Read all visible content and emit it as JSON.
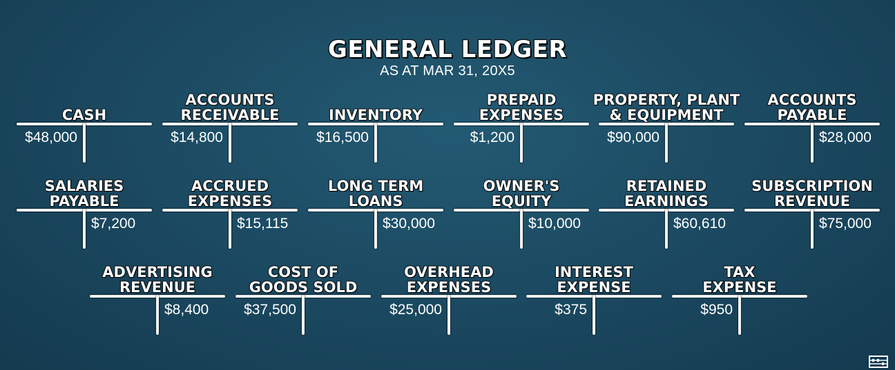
{
  "title": "GENERAL LEDGER",
  "subtitle": "AS AT MAR 31, 20X5",
  "accounts": [
    {
      "name": "CASH",
      "debit": "$48,000",
      "credit": ""
    },
    {
      "name": "ACCOUNTS\nRECEIVABLE",
      "debit": "$14,800",
      "credit": ""
    },
    {
      "name": "INVENTORY",
      "debit": "$16,500",
      "credit": ""
    },
    {
      "name": "PREPAID\nEXPENSES",
      "debit": "$1,200",
      "credit": ""
    },
    {
      "name": "PROPERTY, PLANT\n& EQUIPMENT",
      "debit": "$90,000",
      "credit": ""
    },
    {
      "name": "ACCOUNTS\nPAYABLE",
      "debit": "",
      "credit": "$28,000"
    },
    {
      "name": "SALARIES\nPAYABLE",
      "debit": "",
      "credit": "$7,200"
    },
    {
      "name": "ACCRUED\nEXPENSES",
      "debit": "",
      "credit": "$15,115"
    },
    {
      "name": "LONG TERM\nLOANS",
      "debit": "",
      "credit": "$30,000"
    },
    {
      "name": "OWNER'S\nEQUITY",
      "debit": "",
      "credit": "$10,000"
    },
    {
      "name": "RETAINED\nEARNINGS",
      "debit": "",
      "credit": "$60,610"
    },
    {
      "name": "SUBSCRIPTION\nREVENUE",
      "debit": "",
      "credit": "$75,000"
    },
    {
      "name": "ADVERTISING\nREVENUE",
      "debit": "",
      "credit": "$8,400"
    },
    {
      "name": "COST OF\nGOODS SOLD",
      "debit": "$37,500",
      "credit": ""
    },
    {
      "name": "OVERHEAD\nEXPENSES",
      "debit": "$25,000",
      "credit": ""
    },
    {
      "name": "INTEREST\nEXPENSE",
      "debit": "$375",
      "credit": ""
    },
    {
      "name": "TAX\nEXPENSE",
      "debit": "$950",
      "credit": ""
    }
  ],
  "logo_icon": "abacus-icon"
}
